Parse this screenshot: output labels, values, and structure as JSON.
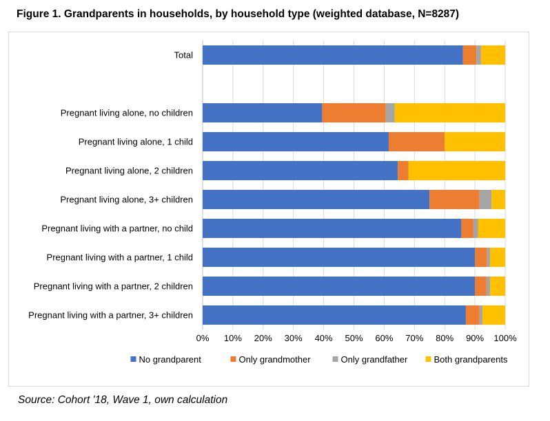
{
  "figure_title": "Figure 1. Grandparents in households, by household type (weighted database, N=8287)",
  "source_note": "Source: Cohort '18, Wave 1, own calculation",
  "chart_data": {
    "type": "bar",
    "orientation": "horizontal",
    "stacked": "percent",
    "title": "",
    "xlabel": "",
    "ylabel": "",
    "xlim": [
      0,
      100
    ],
    "x_ticks": [
      "0%",
      "10%",
      "20%",
      "30%",
      "40%",
      "50%",
      "60%",
      "70%",
      "80%",
      "90%",
      "100%"
    ],
    "grid": true,
    "legend_position": "bottom",
    "categories": [
      "Total",
      "",
      "Pregnant living alone, no children",
      "Pregnant living alone, 1 child",
      "Pregnant living alone, 2 children",
      "Pregnant living alone, 3+ children",
      "Pregnant living with a partner, no child",
      "Pregnant living with a partner, 1 child",
      "Pregnant living with a partner, 2 children",
      "Pregnant living with a partner, 3+ children"
    ],
    "series": [
      {
        "name": "No grandparent",
        "color": "#4472C4",
        "values": [
          86,
          null,
          39.5,
          61.5,
          64.5,
          75,
          85.5,
          90,
          90,
          87
        ]
      },
      {
        "name": "Only grandmother",
        "color": "#ED7D31",
        "values": [
          4.5,
          null,
          21,
          18.5,
          3.5,
          16.5,
          4,
          4,
          3.8,
          4.5
        ]
      },
      {
        "name": "Only grandfather",
        "color": "#A5A5A5",
        "values": [
          1.5,
          null,
          3,
          0,
          0,
          4,
          1.5,
          1,
          1.2,
          1
        ]
      },
      {
        "name": "Both grandparents",
        "color": "#FFC000",
        "values": [
          8,
          null,
          36.5,
          20,
          32,
          4.5,
          9,
          5,
          5,
          7.5
        ]
      }
    ]
  }
}
